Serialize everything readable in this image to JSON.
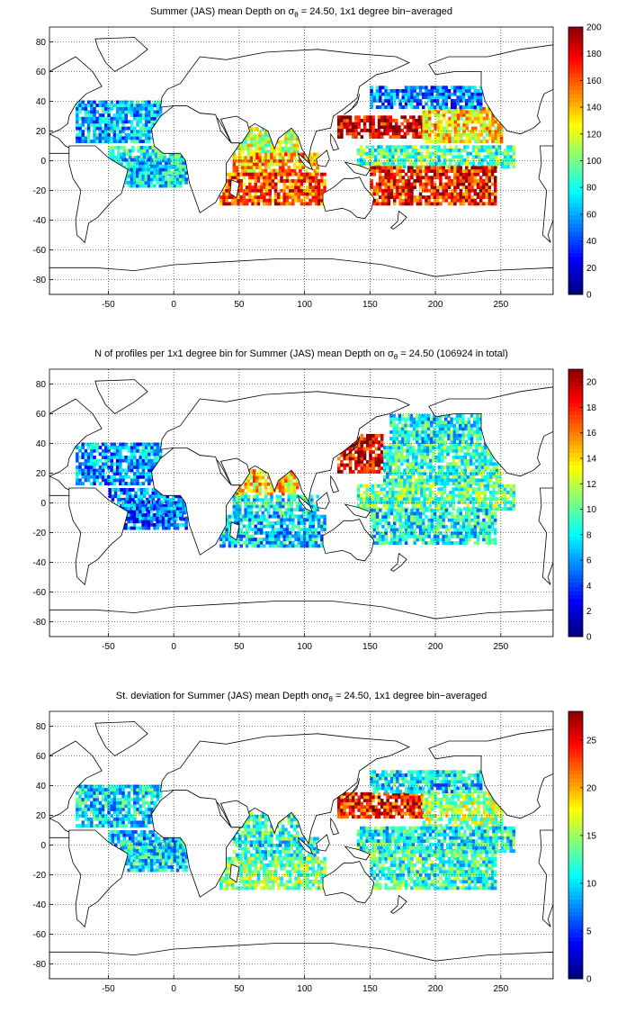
{
  "chart_data": [
    {
      "type": "heatmap",
      "title_prefix": "Summer (JAS) mean Depth on ",
      "title_sigma": "σ",
      "title_sub": "θ",
      "title_suffix": " = 24.50, 1x1 degree bin−averaged",
      "x_ticks": [
        "-50",
        "0",
        "50",
        "100",
        "150",
        "200",
        "250"
      ],
      "y_ticks": [
        "80",
        "60",
        "40",
        "20",
        "0",
        "-20",
        "-40",
        "-60",
        "-80"
      ],
      "xlim": [
        -95,
        290
      ],
      "ylim": [
        -90,
        90
      ],
      "grid": true,
      "colormap": "jet",
      "colorbar_ticks": [
        "200",
        "180",
        "160",
        "140",
        "120",
        "100",
        "80",
        "60",
        "40",
        "20",
        "0"
      ],
      "colorbar_range": [
        0,
        200
      ],
      "regions": [
        {
          "name": "North Atlantic subtropical",
          "lon": [
            -75,
            -10
          ],
          "lat": [
            12,
            40
          ],
          "value": 60
        },
        {
          "name": "Tropical Atlantic",
          "lon": [
            -50,
            8
          ],
          "lat": [
            -12,
            10
          ],
          "value": 80
        },
        {
          "name": "South Atlantic",
          "lon": [
            -40,
            10
          ],
          "lat": [
            -18,
            0
          ],
          "value": 70
        },
        {
          "name": "Arabian Sea / Bay of Bengal",
          "lon": [
            45,
            95
          ],
          "lat": [
            5,
            22
          ],
          "value": 110
        },
        {
          "name": "Equatorial Indian Ocean",
          "lon": [
            45,
            110
          ],
          "lat": [
            -10,
            5
          ],
          "value": 140
        },
        {
          "name": "South Indian Ocean",
          "lon": [
            35,
            115
          ],
          "lat": [
            -30,
            -10
          ],
          "value": 160
        },
        {
          "name": "Kuroshio / NW Pacific",
          "lon": [
            125,
            190
          ],
          "lat": [
            15,
            30
          ],
          "value": 185
        },
        {
          "name": "North Pacific subtropical",
          "lon": [
            190,
            250
          ],
          "lat": [
            12,
            35
          ],
          "value": 130
        },
        {
          "name": "North Pacific subpolar",
          "lon": [
            150,
            235
          ],
          "lat": [
            35,
            50
          ],
          "value": 50
        },
        {
          "name": "Equatorial Pacific",
          "lon": [
            140,
            260
          ],
          "lat": [
            -5,
            10
          ],
          "value": 90
        },
        {
          "name": "South Pacific subtropical",
          "lon": [
            150,
            245
          ],
          "lat": [
            -30,
            -5
          ],
          "value": 170
        }
      ]
    },
    {
      "type": "heatmap",
      "title_prefix": "N of profiles per 1x1 degree bin for Summer (JAS) mean Depth on ",
      "title_sigma": "σ",
      "title_sub": "θ",
      "title_suffix": " = 24.50 (106924 in total)",
      "x_ticks": [
        "-50",
        "0",
        "50",
        "100",
        "150",
        "200",
        "250"
      ],
      "y_ticks": [
        "80",
        "60",
        "40",
        "20",
        "0",
        "-20",
        "-40",
        "-60",
        "-80"
      ],
      "xlim": [
        -95,
        290
      ],
      "ylim": [
        -90,
        90
      ],
      "grid": true,
      "colormap": "jet",
      "colorbar_ticks": [
        "20",
        "18",
        "16",
        "14",
        "12",
        "10",
        "8",
        "6",
        "4",
        "2",
        "0"
      ],
      "colorbar_range": [
        0,
        21
      ],
      "regions": [
        {
          "name": "North Atlantic subtropical",
          "lon": [
            -75,
            -10
          ],
          "lat": [
            12,
            40
          ],
          "value": 6
        },
        {
          "name": "Tropical Atlantic",
          "lon": [
            -50,
            8
          ],
          "lat": [
            -12,
            10
          ],
          "value": 5
        },
        {
          "name": "South Atlantic",
          "lon": [
            -40,
            10
          ],
          "lat": [
            -18,
            0
          ],
          "value": 5
        },
        {
          "name": "Arabian Sea / Bay of Bengal",
          "lon": [
            45,
            95
          ],
          "lat": [
            5,
            22
          ],
          "value": 14
        },
        {
          "name": "Equatorial Indian Ocean",
          "lon": [
            45,
            110
          ],
          "lat": [
            -10,
            5
          ],
          "value": 8
        },
        {
          "name": "South Indian Ocean",
          "lon": [
            35,
            115
          ],
          "lat": [
            -30,
            -10
          ],
          "value": 7
        },
        {
          "name": "Kuroshio / NW Pacific",
          "lon": [
            125,
            160
          ],
          "lat": [
            20,
            45
          ],
          "value": 19
        },
        {
          "name": "North Pacific subtropical",
          "lon": [
            160,
            250
          ],
          "lat": [
            12,
            40
          ],
          "value": 9
        },
        {
          "name": "North Pacific subpolar",
          "lon": [
            165,
            235
          ],
          "lat": [
            40,
            58
          ],
          "value": 8
        },
        {
          "name": "Equatorial Pacific",
          "lon": [
            140,
            260
          ],
          "lat": [
            -5,
            12
          ],
          "value": 10
        },
        {
          "name": "South Pacific subtropical",
          "lon": [
            150,
            245
          ],
          "lat": [
            -28,
            -5
          ],
          "value": 8
        }
      ]
    },
    {
      "type": "heatmap",
      "title_prefix": "St. deviation for Summer (JAS) mean Depth on",
      "title_sigma": "σ",
      "title_sub": "θ",
      "title_suffix": " = 24.50, 1x1 degree bin−averaged",
      "x_ticks": [
        "-50",
        "0",
        "50",
        "100",
        "150",
        "200",
        "250"
      ],
      "y_ticks": [
        "80",
        "60",
        "40",
        "20",
        "0",
        "-20",
        "-40",
        "-60",
        "-80"
      ],
      "xlim": [
        -95,
        290
      ],
      "ylim": [
        -90,
        90
      ],
      "grid": true,
      "colormap": "jet",
      "colorbar_ticks": [
        "25",
        "20",
        "15",
        "10",
        "5",
        "0"
      ],
      "colorbar_range": [
        0,
        28
      ],
      "regions": [
        {
          "name": "North Atlantic subtropical",
          "lon": [
            -75,
            -10
          ],
          "lat": [
            12,
            40
          ],
          "value": 10
        },
        {
          "name": "Tropical Atlantic",
          "lon": [
            -50,
            8
          ],
          "lat": [
            -12,
            10
          ],
          "value": 9
        },
        {
          "name": "South Atlantic",
          "lon": [
            -40,
            10
          ],
          "lat": [
            -18,
            0
          ],
          "value": 10
        },
        {
          "name": "Arabian Sea / Bay of Bengal",
          "lon": [
            45,
            95
          ],
          "lat": [
            5,
            22
          ],
          "value": 12
        },
        {
          "name": "Equatorial Indian Ocean",
          "lon": [
            45,
            110
          ],
          "lat": [
            -10,
            5
          ],
          "value": 11
        },
        {
          "name": "South Indian Ocean",
          "lon": [
            35,
            115
          ],
          "lat": [
            -30,
            -10
          ],
          "value": 14
        },
        {
          "name": "Kuroshio / NW Pacific",
          "lon": [
            125,
            190
          ],
          "lat": [
            18,
            35
          ],
          "value": 24
        },
        {
          "name": "North Pacific subtropical",
          "lon": [
            190,
            250
          ],
          "lat": [
            12,
            35
          ],
          "value": 15
        },
        {
          "name": "North Pacific subpolar",
          "lon": [
            150,
            235
          ],
          "lat": [
            35,
            50
          ],
          "value": 10
        },
        {
          "name": "Equatorial Pacific",
          "lon": [
            140,
            260
          ],
          "lat": [
            -5,
            12
          ],
          "value": 11
        },
        {
          "name": "South Pacific subtropical",
          "lon": [
            150,
            245
          ],
          "lat": [
            -30,
            -5
          ],
          "value": 12
        }
      ]
    }
  ]
}
